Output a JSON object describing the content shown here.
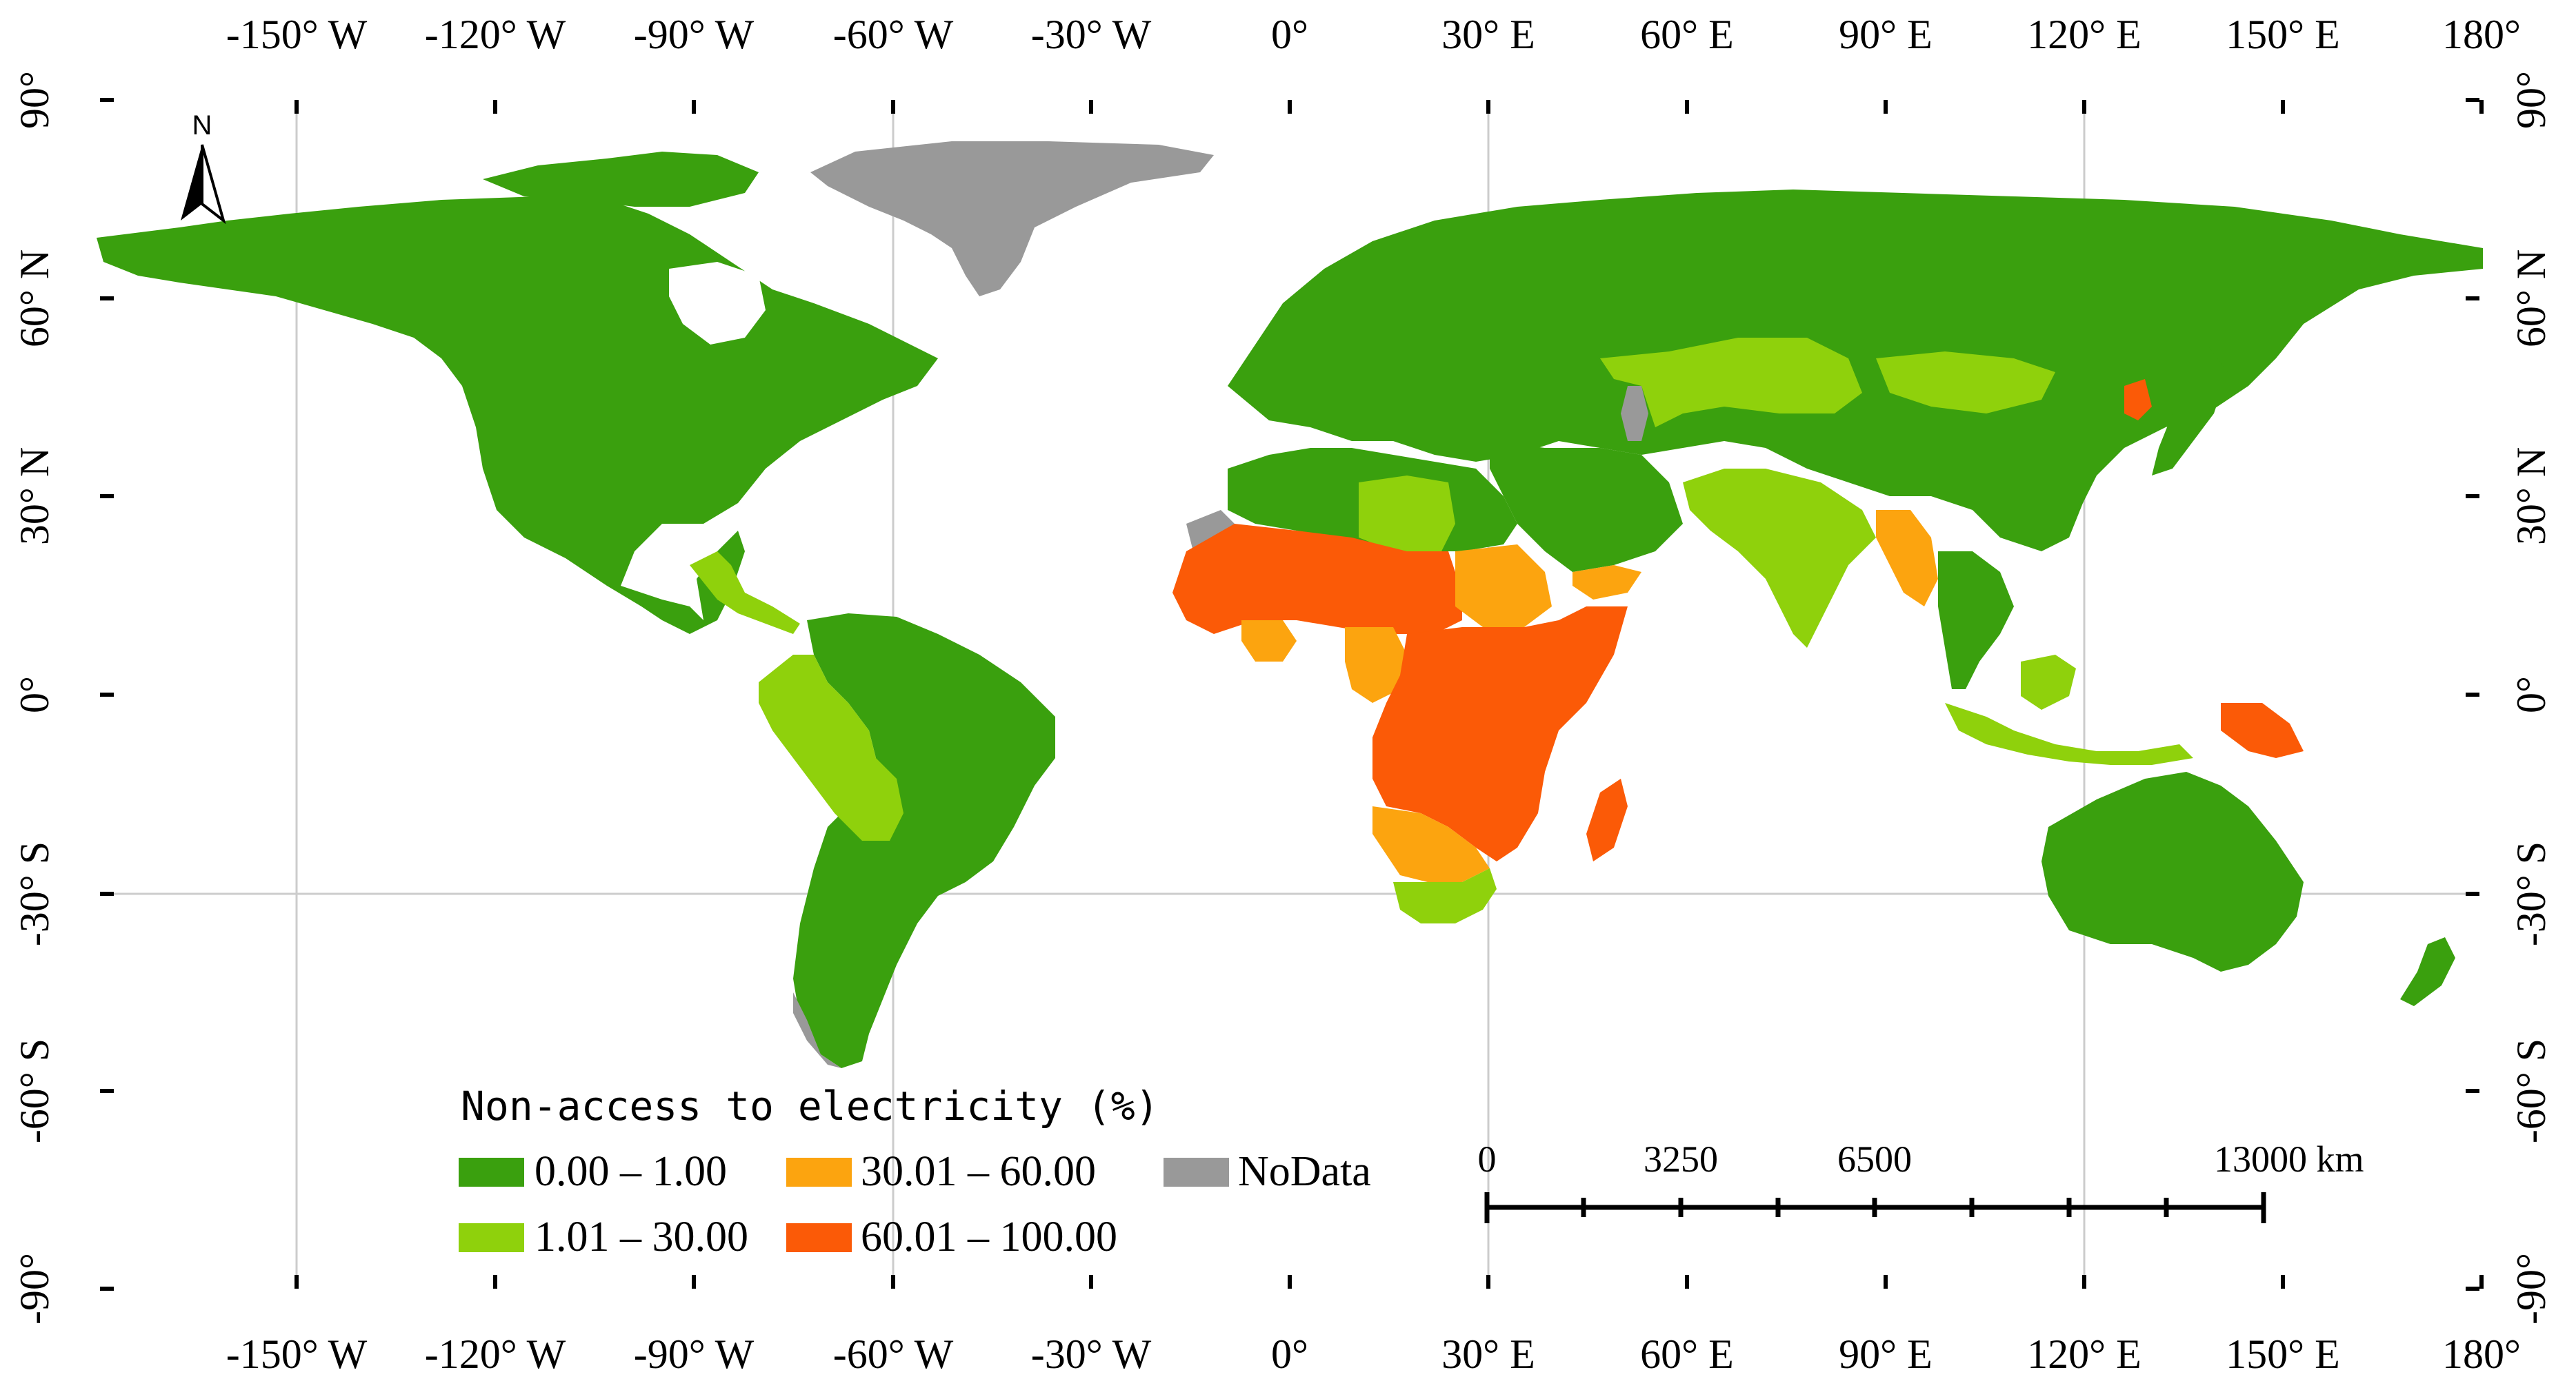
{
  "legend": {
    "title": "Non-access to electricity (%)",
    "classes": [
      {
        "label": "0.00 – 1.00",
        "color": "#3aa00e"
      },
      {
        "label": "1.01 – 30.00",
        "color": "#8fd10c"
      },
      {
        "label": "30.01 – 60.00",
        "color": "#fca40f"
      },
      {
        "label": "60.01 – 100.00",
        "color": "#fb5a07"
      },
      {
        "label": "NoData",
        "color": "#999999"
      }
    ]
  },
  "axes": {
    "top_lon": [
      "-150° W",
      "-120° W",
      "-90° W",
      "-60° W",
      "-30° W",
      "0°",
      "30° E",
      "60° E",
      "90° E",
      "120° E",
      "150° E",
      "180°"
    ],
    "bottom_lon": [
      "-150° W",
      "-120° W",
      "-90° W",
      "-60° W",
      "-30° W",
      "0°",
      "30° E",
      "60° E",
      "90° E",
      "120° E",
      "150° E",
      "180°"
    ],
    "left_lat": [
      "90°",
      "60° N",
      "30° N",
      "0°",
      "-30° S",
      "-60° S",
      "-90°"
    ],
    "right_lat": [
      "90°",
      "60° N",
      "30° N",
      "0°",
      "-30° S",
      "-60° S",
      "-90°"
    ]
  },
  "scale_bar": {
    "labels": [
      "0",
      "3250",
      "6500",
      "13000 km"
    ]
  },
  "north_arrow": {
    "label": "N"
  }
}
